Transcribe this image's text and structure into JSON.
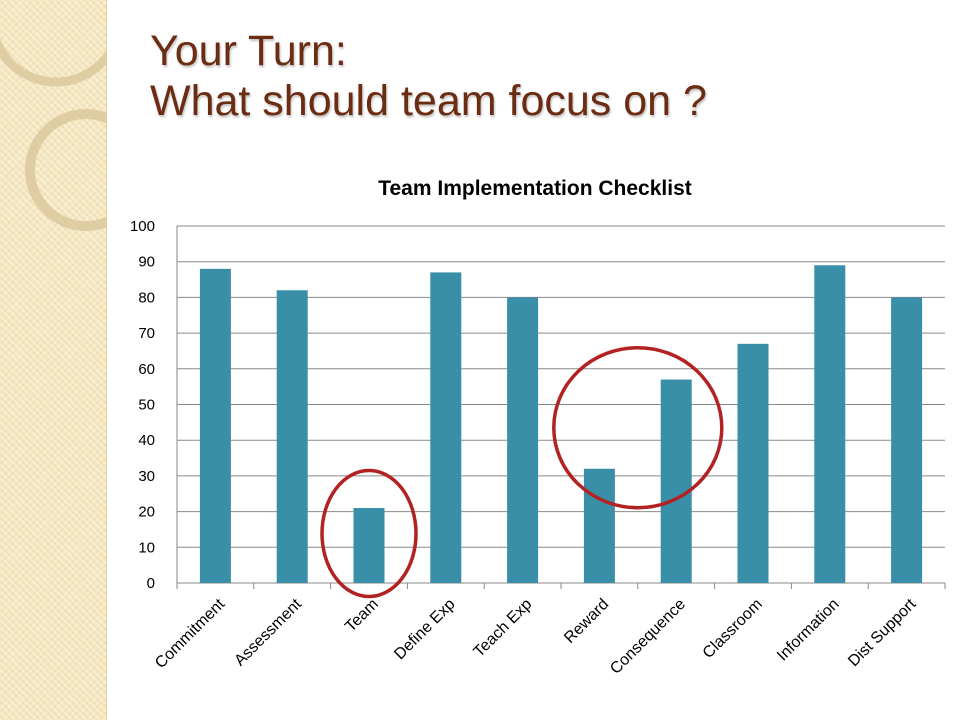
{
  "slide": {
    "title_line1": "Your Turn:",
    "title_line2": "What should team focus on ?"
  },
  "colors": {
    "title": "#6b2c12",
    "bar": "#3a8fa8",
    "highlight_circle": "#b22222",
    "side_strip": "#f4e6bf"
  },
  "chart_data": {
    "type": "bar",
    "title": "Team Implementation Checklist",
    "categories": [
      "Commitment",
      "Assessment",
      "Team",
      "Define Exp",
      "Teach Exp",
      "Reward",
      "Consequence",
      "Classroom",
      "Information",
      "Dist Support"
    ],
    "values": [
      88,
      82,
      21,
      87,
      80,
      32,
      57,
      67,
      89,
      80
    ],
    "ylim": [
      0,
      100
    ],
    "yticks": [
      0,
      10,
      20,
      30,
      40,
      50,
      60,
      70,
      80,
      90,
      100
    ],
    "xlabel": "",
    "ylabel": "",
    "grid": true,
    "legend": "none",
    "annotations": [
      {
        "type": "circle",
        "around_categories": [
          "Team"
        ]
      },
      {
        "type": "circle",
        "around_categories": [
          "Reward",
          "Consequence"
        ]
      }
    ]
  }
}
